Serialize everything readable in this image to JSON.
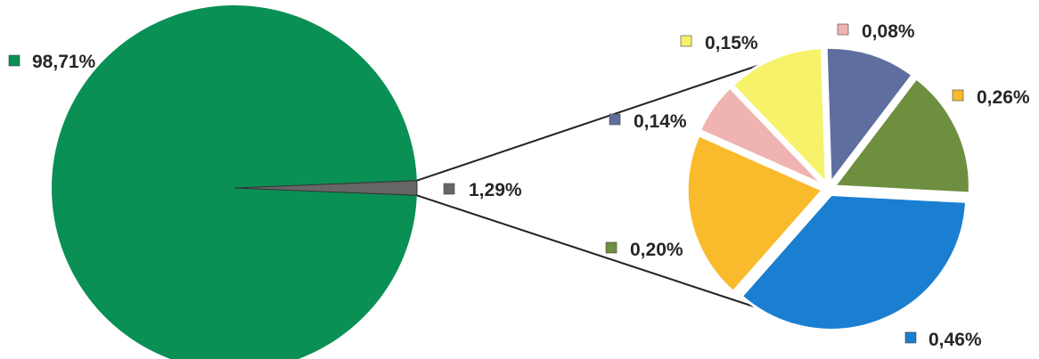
{
  "chart_data": {
    "type": "pie",
    "title": "",
    "main_pie": {
      "slices": [
        {
          "label": "98,71%",
          "value": 98.71,
          "color": "#0a9054"
        },
        {
          "label": "1,29%",
          "value": 1.29,
          "color": "#666666"
        }
      ]
    },
    "secondary_pie": {
      "detail_of": "1,29%",
      "slices": [
        {
          "label": "0,46%",
          "value": 0.46,
          "color": "#1a7fd1"
        },
        {
          "label": "0,26%",
          "value": 0.26,
          "color": "#f9bb2c"
        },
        {
          "label": "0,08%",
          "value": 0.08,
          "color": "#efb3b1"
        },
        {
          "label": "0,15%",
          "value": 0.15,
          "color": "#f6f26a"
        },
        {
          "label": "0,14%",
          "value": 0.14,
          "color": "#5e6f9f"
        },
        {
          "label": "0,20%",
          "value": 0.2,
          "color": "#6e8f3f"
        }
      ]
    },
    "legend": "data labels beside slices",
    "grid": false
  }
}
